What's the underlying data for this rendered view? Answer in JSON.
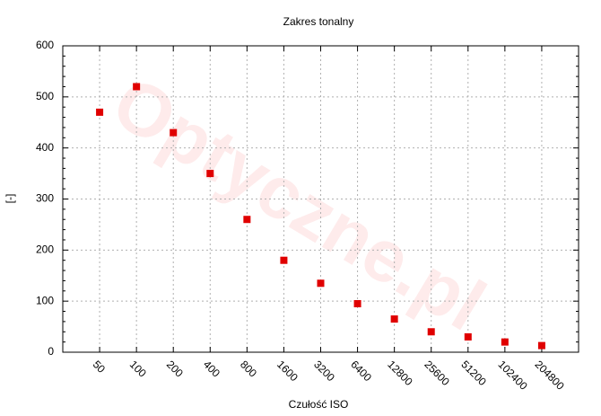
{
  "chart_data": {
    "type": "scatter",
    "title": "Zakres tonalny",
    "watermark": "Optyczne.pl",
    "x_label": "Czułość ISO",
    "y_label": "[-]",
    "categories": [
      "50",
      "100",
      "200",
      "400",
      "800",
      "1600",
      "3200",
      "6400",
      "12800",
      "25600",
      "51200",
      "102400",
      "204800"
    ],
    "values": [
      470,
      520,
      430,
      350,
      260,
      180,
      135,
      95,
      65,
      40,
      30,
      20,
      13
    ],
    "color": "#e00000",
    "ylim": [
      0,
      600
    ],
    "yticks": [
      0,
      100,
      200,
      300,
      400,
      500,
      600
    ],
    "grid": true
  }
}
